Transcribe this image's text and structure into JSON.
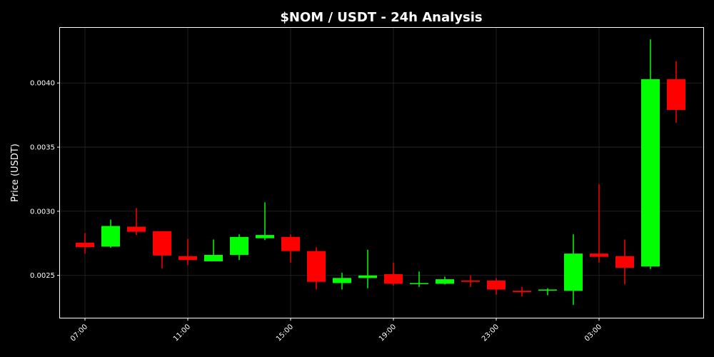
{
  "chart_data": {
    "type": "candlestick",
    "title": "$NOM / USDT - 24h Analysis",
    "ylabel": "Price (USDT)",
    "xlabel": "",
    "ylim": [
      0.00217,
      0.00443
    ],
    "grid": true,
    "colors": {
      "up": "#00ff00",
      "down": "#ff0000",
      "background": "#000000"
    },
    "yticks": [
      "0.0025",
      "0.0030",
      "0.0035",
      "0.0040"
    ],
    "xtick_labels": [
      "07:00",
      "11:00",
      "15:00",
      "19:00",
      "23:00",
      "03:00"
    ],
    "xtick_index": [
      0,
      4,
      8,
      12,
      16,
      20
    ],
    "candles": [
      {
        "open": 0.002755,
        "close": 0.00272,
        "high": 0.00283,
        "low": 0.00267
      },
      {
        "open": 0.002725,
        "close": 0.002885,
        "high": 0.002935,
        "low": 0.002715
      },
      {
        "open": 0.00288,
        "close": 0.00284,
        "high": 0.003025,
        "low": 0.002815
      },
      {
        "open": 0.002845,
        "close": 0.002655,
        "high": 0.002845,
        "low": 0.002555
      },
      {
        "open": 0.00265,
        "close": 0.00262,
        "high": 0.002785,
        "low": 0.00258
      },
      {
        "open": 0.00261,
        "close": 0.00266,
        "high": 0.00278,
        "low": 0.00261
      },
      {
        "open": 0.00266,
        "close": 0.0028,
        "high": 0.00282,
        "low": 0.00262
      },
      {
        "open": 0.00279,
        "close": 0.002815,
        "high": 0.00307,
        "low": 0.002775
      },
      {
        "open": 0.0028,
        "close": 0.00269,
        "high": 0.00282,
        "low": 0.0026
      },
      {
        "open": 0.00269,
        "close": 0.00245,
        "high": 0.00272,
        "low": 0.00239
      },
      {
        "open": 0.00244,
        "close": 0.00248,
        "high": 0.00252,
        "low": 0.00239
      },
      {
        "open": 0.00248,
        "close": 0.0025,
        "high": 0.0027,
        "low": 0.0024
      },
      {
        "open": 0.00251,
        "close": 0.002435,
        "high": 0.0026,
        "low": 0.00242
      },
      {
        "open": 0.002435,
        "close": 0.00244,
        "high": 0.00253,
        "low": 0.00241
      },
      {
        "open": 0.002435,
        "close": 0.00247,
        "high": 0.00249,
        "low": 0.00243
      },
      {
        "open": 0.00246,
        "close": 0.00245,
        "high": 0.0025,
        "low": 0.00241
      },
      {
        "open": 0.00246,
        "close": 0.00239,
        "high": 0.00248,
        "low": 0.00235
      },
      {
        "open": 0.00238,
        "close": 0.00237,
        "high": 0.00241,
        "low": 0.002335
      },
      {
        "open": 0.002385,
        "close": 0.00239,
        "high": 0.0024,
        "low": 0.002345
      },
      {
        "open": 0.00238,
        "close": 0.00267,
        "high": 0.00282,
        "low": 0.00227
      },
      {
        "open": 0.00267,
        "close": 0.002645,
        "high": 0.00321,
        "low": 0.0026
      },
      {
        "open": 0.00265,
        "close": 0.00256,
        "high": 0.00278,
        "low": 0.00243
      },
      {
        "open": 0.00257,
        "close": 0.00403,
        "high": 0.00434,
        "low": 0.00255
      },
      {
        "open": 0.00403,
        "close": 0.00379,
        "high": 0.00417,
        "low": 0.00369
      }
    ]
  }
}
